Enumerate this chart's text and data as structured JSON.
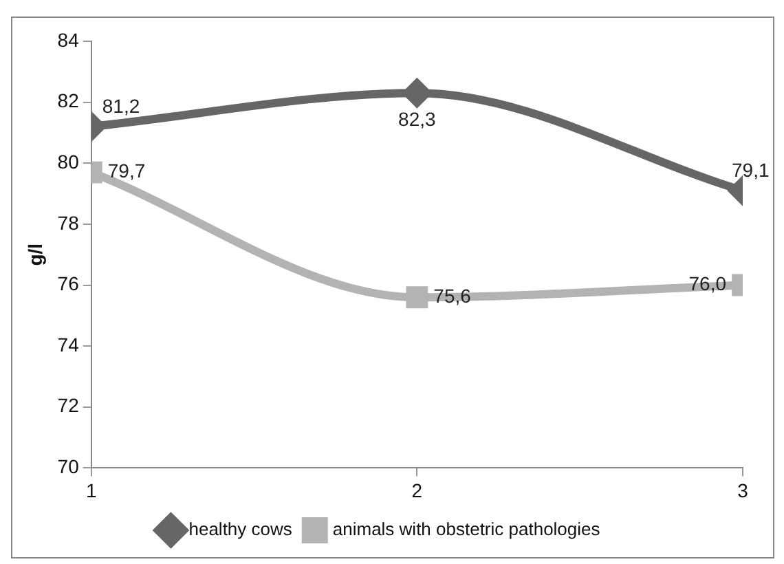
{
  "chart_data": {
    "type": "line",
    "ylabel": "g/l",
    "x": [
      1,
      2,
      3
    ],
    "xlim": [
      1,
      3
    ],
    "xticks": [
      1,
      2,
      3
    ],
    "ylim": [
      70,
      84
    ],
    "yticks": [
      70,
      72,
      74,
      76,
      78,
      80,
      82,
      84
    ],
    "grid": false,
    "legend": "bottom",
    "series": [
      {
        "name": "healthy cows",
        "color": "#666666",
        "marker": "diamond",
        "values": [
          81.2,
          82.3,
          79.1
        ],
        "value_labels": [
          "81,2",
          "82,3",
          "79,1"
        ]
      },
      {
        "name": "animals with obstetric pathologies",
        "color": "#b3b3b3",
        "marker": "square",
        "values": [
          79.7,
          75.6,
          76.0
        ],
        "value_labels": [
          "79,7",
          "75,6",
          "76,0"
        ]
      }
    ]
  }
}
